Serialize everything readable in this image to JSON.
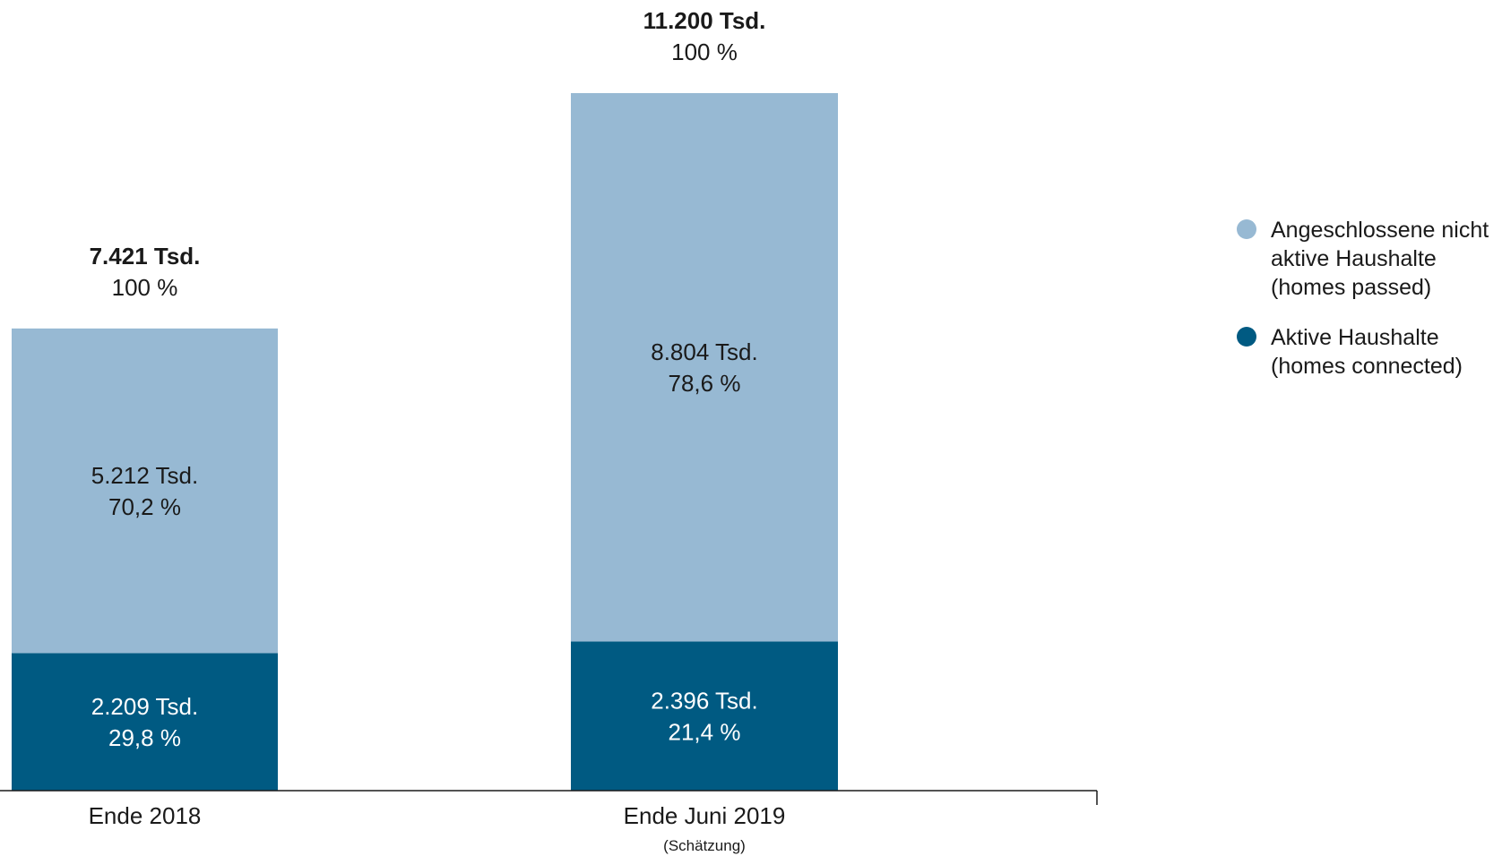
{
  "chart_data": {
    "type": "bar",
    "stacked": true,
    "categories": [
      "Ende 2018",
      "Ende Juni 2019"
    ],
    "category_notes": [
      "",
      "(Schätzung)"
    ],
    "totals": [
      {
        "value_label": "7.421 Tsd.",
        "percent_label": "100 %",
        "value": 7421
      },
      {
        "value_label": "11.200 Tsd.",
        "percent_label": "100 %",
        "value": 11200
      }
    ],
    "series": [
      {
        "legend": [
          "Aktive Haushalte",
          "(homes connected)"
        ],
        "color": "#005a82",
        "text_color": "#ffffff",
        "values": [
          2209,
          2396
        ],
        "value_labels": [
          "2.209 Tsd.",
          "2.396 Tsd."
        ],
        "percent_labels": [
          "29,8 %",
          "21,4 %"
        ]
      },
      {
        "legend": [
          "Angeschlossene nicht",
          "aktive Haushalte",
          "(homes passed)"
        ],
        "color": "#97b9d3",
        "text_color": "#1a1a1a",
        "values": [
          5212,
          8804
        ],
        "value_labels": [
          "5.212 Tsd.",
          "8.804 Tsd."
        ],
        "percent_labels": [
          "70,2 %",
          "78,6 %"
        ]
      }
    ],
    "legend_order": [
      1,
      0
    ],
    "legend_position": "right",
    "ylim": [
      0,
      11200
    ],
    "grid": false,
    "xlabel": "",
    "ylabel": ""
  }
}
